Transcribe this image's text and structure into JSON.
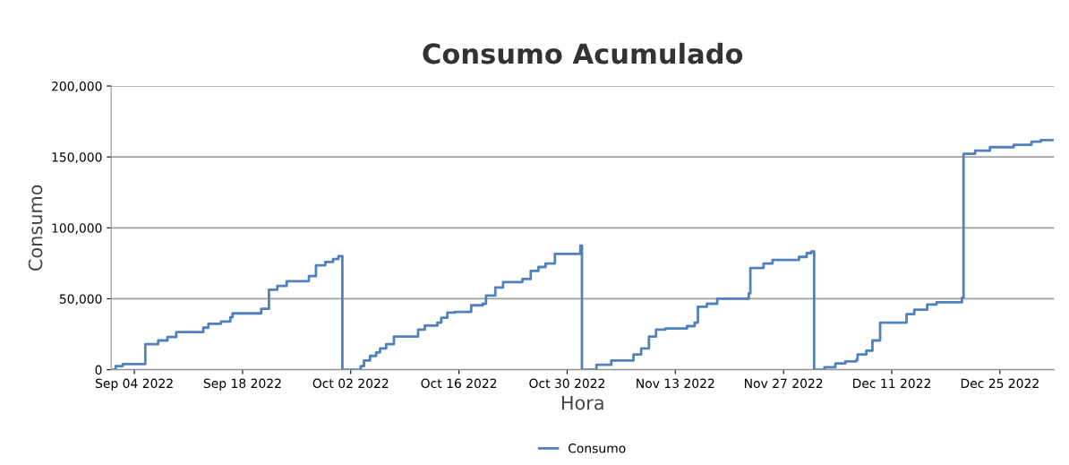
{
  "chart_data": {
    "type": "step",
    "title": "Consumo Acumulado",
    "xlabel": "Hora",
    "ylabel": "Consumo",
    "xlim": [
      "2022-09-01",
      "2023-01-01"
    ],
    "xticks": [
      {
        "value": "2022-09-04",
        "label": "Sep 04 2022"
      },
      {
        "value": "2022-09-18",
        "label": "Sep 18 2022"
      },
      {
        "value": "2022-10-02",
        "label": "Oct 02 2022"
      },
      {
        "value": "2022-10-16",
        "label": "Oct 16 2022"
      },
      {
        "value": "2022-10-30",
        "label": "Oct 30 2022"
      },
      {
        "value": "2022-11-13",
        "label": "Nov 13 2022"
      },
      {
        "value": "2022-11-27",
        "label": "Nov 27 2022"
      },
      {
        "value": "2022-12-11",
        "label": "Dec 11 2022"
      },
      {
        "value": "2022-12-25",
        "label": "Dec 25 2022"
      }
    ],
    "ylim": [
      0,
      200000
    ],
    "yticks": [
      {
        "value": 0,
        "label": "0"
      },
      {
        "value": 50000,
        "label": "50,000"
      },
      {
        "value": 100000,
        "label": "100,000"
      },
      {
        "value": 150000,
        "label": "150,000"
      },
      {
        "value": 200000,
        "label": "200,000"
      }
    ],
    "grid": "y",
    "legend": "bottom",
    "marker": "none",
    "line_style": "solid",
    "series": [
      {
        "name": "Consumo",
        "color": "#4f81bd",
        "x": [
          "2022-09-01T00:00",
          "2022-09-01T14:00",
          "2022-09-02T12:00",
          "2022-09-05T10:00",
          "2022-09-07T02:00",
          "2022-09-08T07:00",
          "2022-09-09T10:00",
          "2022-09-12T22:00",
          "2022-09-13T14:00",
          "2022-09-15T05:00",
          "2022-09-16T10:00",
          "2022-09-16T17:00",
          "2022-09-20T10:00",
          "2022-09-21T10:00",
          "2022-09-22T12:00",
          "2022-09-23T17:00",
          "2022-09-26T14:00",
          "2022-09-27T12:00",
          "2022-09-28T17:00",
          "2022-09-29T17:00",
          "2022-09-30T10:00",
          "2022-09-30T22:00",
          "2022-10-03T07:00",
          "2022-10-03T17:00",
          "2022-10-04T12:00",
          "2022-10-05T07:00",
          "2022-10-05T19:00",
          "2022-10-06T14:00",
          "2022-10-07T14:00",
          "2022-10-10T17:00",
          "2022-10-11T14:00",
          "2022-10-13T05:00",
          "2022-10-13T17:00",
          "2022-10-14T12:00",
          "2022-10-15T12:00",
          "2022-10-17T14:00",
          "2022-10-19T02:00",
          "2022-10-19T12:00",
          "2022-10-20T17:00",
          "2022-10-21T17:00",
          "2022-10-24T05:00",
          "2022-10-25T07:00",
          "2022-10-26T07:00",
          "2022-10-27T05:00",
          "2022-10-28T10:00",
          "2022-10-31T17:00",
          "2022-10-31T22:00",
          "2022-11-02T19:00",
          "2022-11-04T17:00",
          "2022-11-07T14:00",
          "2022-11-08T14:00",
          "2022-11-09T14:00",
          "2022-11-10T12:00",
          "2022-11-11T17:00",
          "2022-11-14T12:00",
          "2022-11-15T12:00",
          "2022-11-15T22:00",
          "2022-11-17T02:00",
          "2022-11-18T10:00",
          "2022-11-22T12:00",
          "2022-11-22T17:00",
          "2022-11-24T10:00",
          "2022-11-25T14:00",
          "2022-11-29T00:00",
          "2022-11-30T00:00",
          "2022-11-30T14:00",
          "2022-11-30T23:00",
          "2022-12-02T07:00",
          "2022-12-03T17:00",
          "2022-12-05T00:00",
          "2022-12-06T10:00",
          "2022-12-06T14:00",
          "2022-12-07T17:00",
          "2022-12-08T12:00",
          "2022-12-09T12:00",
          "2022-12-12T22:00",
          "2022-12-13T22:00",
          "2022-12-15T14:00",
          "2022-12-16T19:00",
          "2022-12-20T02:00",
          "2022-12-20T07:00",
          "2022-12-21T19:00",
          "2022-12-23T17:00",
          "2022-12-26T19:00",
          "2022-12-29T02:00",
          "2022-12-30T07:00",
          "2022-12-31T19:00"
        ],
        "values": [
          0,
          2500,
          4000,
          18000,
          20600,
          23000,
          26500,
          29600,
          32400,
          34000,
          37000,
          39700,
          42900,
          56400,
          59000,
          62400,
          66000,
          73600,
          75900,
          78000,
          80000,
          0,
          2500,
          6500,
          9700,
          12200,
          15000,
          18000,
          23300,
          28200,
          31100,
          33200,
          36600,
          40200,
          40800,
          45400,
          46500,
          52200,
          58000,
          61800,
          63900,
          69600,
          72400,
          74900,
          81600,
          87500,
          0,
          3400,
          6500,
          10700,
          15000,
          23300,
          28200,
          29000,
          30700,
          33200,
          44400,
          46500,
          50000,
          53800,
          71700,
          74900,
          77400,
          79500,
          82200,
          83300,
          0,
          1700,
          4400,
          5900,
          6900,
          10700,
          13400,
          20600,
          33200,
          39100,
          42300,
          45900,
          47500,
          50700,
          152300,
          154400,
          156900,
          158600,
          160700,
          161900,
          161900
        ]
      }
    ]
  }
}
